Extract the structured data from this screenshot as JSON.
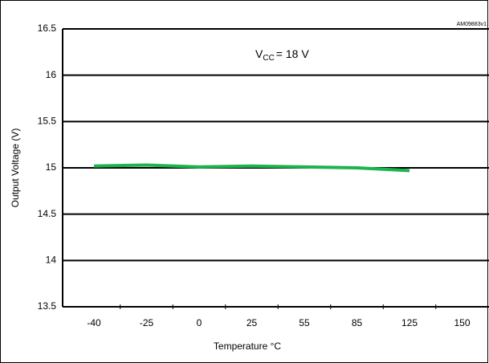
{
  "chart_data": {
    "type": "line",
    "categories": [
      "-40",
      "-25",
      "0",
      "25",
      "55",
      "85",
      "125",
      "150"
    ],
    "series": [
      {
        "color": "#1db34f",
        "values": [
          15.02,
          15.03,
          15.01,
          15.02,
          15.01,
          15.0,
          14.97,
          null
        ]
      }
    ],
    "ylim": [
      13.5,
      16.5
    ],
    "yticks": [
      13.5,
      14,
      14.5,
      15,
      15.5,
      16,
      16.5
    ],
    "grid": true,
    "x_label": "Temperature °C",
    "y_label": "Output Voltage (V)",
    "annotation": {
      "main": "V",
      "sub": "CC",
      "rest": "= 18 V"
    },
    "figure_id": "AM09883v1"
  }
}
